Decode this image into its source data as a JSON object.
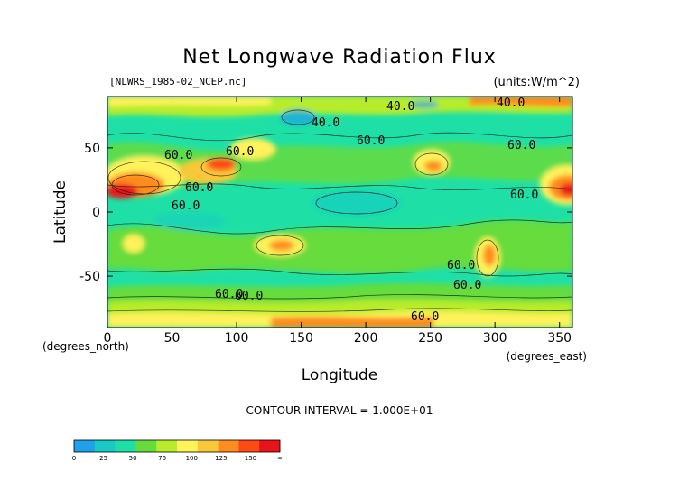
{
  "chart_data": {
    "type": "heatmap",
    "title": "Net Longwave Radiation Flux",
    "source_label": "[NLWRS_1985-02_NCEP.nc]",
    "units_label": "(units:W/m^2)",
    "xlabel": "Longitude",
    "ylabel": "Latitude",
    "x_unit_label": "(degrees_east)",
    "y_unit_label": "(degrees_north)",
    "xlim": [
      0,
      360
    ],
    "ylim": [
      -90,
      90
    ],
    "x_ticks": [
      0,
      50,
      100,
      150,
      200,
      250,
      300,
      350
    ],
    "y_ticks": [
      -50,
      0,
      50
    ],
    "contour_interval_text": "CONTOUR INTERVAL = 1.000E+01",
    "contour_labels": [
      "40.0",
      "40.0",
      "40.0",
      "60.0",
      "60.0",
      "60.0",
      "60.0",
      "60.0",
      "60.0",
      "60.0",
      "60.0",
      "60.0",
      "60.0",
      "60.0",
      "60.0"
    ],
    "colorbar": {
      "boundaries": [
        "0",
        "25",
        "50",
        "75",
        "100",
        "125",
        "150",
        "∞"
      ],
      "colors": [
        "#1fa0e8",
        "#19c9c6",
        "#1ee0a6",
        "#66dc3c",
        "#b8ec2a",
        "#fff25a",
        "#f8c838",
        "#ff8c1e",
        "#ff4a14",
        "#e8141c"
      ]
    },
    "grid": false
  }
}
